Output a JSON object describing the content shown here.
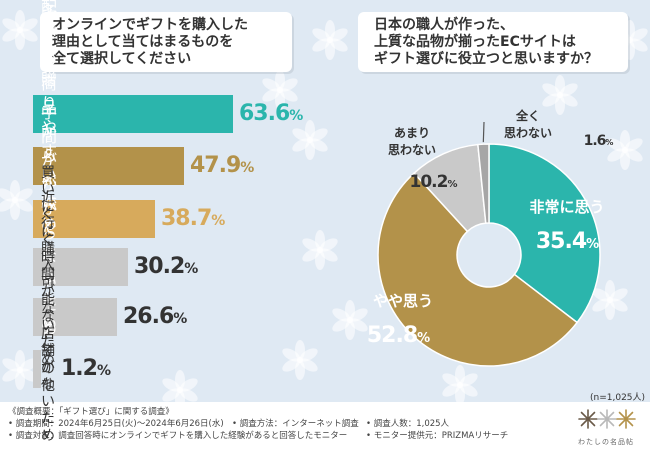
{
  "left_title": {
    "lines": [
      "オンラインでギフトを購入した",
      "理由として当てはまるものを",
      "全て選択してください"
    ]
  },
  "right_title": {
    "lines": [
      "日本の職人が作った、",
      "上質な品物が揃ったECサイトは",
      "ギフト選びに役立つと思いますか？"
    ]
  },
  "colors": {
    "teal": "#2bb5ac",
    "gold": "#b3924a",
    "tan": "#d7aa5c",
    "gray": "#c9c9c9",
    "darkgray": "#a6a6a6",
    "background": "#dfe9f3"
  },
  "chart_data": [
    {
      "type": "bar",
      "orientation": "horizontal",
      "categories": [
        [
          "配送で贈りやすいため"
        ],
        [
          "多くの商品から",
          "比較できるため"
        ],
        [
          "手間がかからないため"
        ],
        [
          "買いに行く",
          "時間がないため"
        ],
        [
          "近くに購入可能な",
          "店舗がないため"
        ],
        [
          "その他"
        ]
      ],
      "values": [
        63.6,
        47.9,
        38.7,
        30.2,
        26.6,
        1.2
      ],
      "value_labels": [
        "63.6",
        "47.9",
        "38.7",
        "30.2",
        "26.6",
        "1.2"
      ],
      "unit": "%",
      "bar_colors": [
        "#2bb5ac",
        "#b3924a",
        "#d7aa5c",
        "#c9c9c9",
        "#c9c9c9",
        "#c9c9c9"
      ],
      "value_colors": [
        "#2bb5ac",
        "#b3924a",
        "#d7aa5c",
        "#333333",
        "#333333",
        "#333333"
      ],
      "xlim": [
        0,
        63.6
      ]
    },
    {
      "type": "pie",
      "slices": [
        {
          "label": [
            "非常に思う"
          ],
          "value": 35.4,
          "value_label": "35.4",
          "color": "#2bb5ac"
        },
        {
          "label": [
            "やや思う"
          ],
          "value": 52.8,
          "value_label": "52.8",
          "color": "#b3924a"
        },
        {
          "label": [
            "あまり",
            "思わない"
          ],
          "value": 10.2,
          "value_label": "10.2",
          "color": "#c9c9c9"
        },
        {
          "label": [
            "全く",
            "思わない"
          ],
          "value": 1.6,
          "value_label": "1.6",
          "color": "#a6a6a6"
        }
      ],
      "unit": "%",
      "start": "12 o'clock",
      "direction": "clockwise",
      "donut": true,
      "sample_note": "(n=1,025人)"
    }
  ],
  "footer": {
    "line1": "《調査概要：「ギフト選び」に関する調査》",
    "items": [
      "• 調査期間：2024年6月25日(火)〜2024年6月26日(水)",
      "• 調査方法：インターネット調査",
      "• 調査人数：1,025人",
      "• 調査対象：調査回答時にオンラインでギフトを購入した経験があると回答したモニター",
      "• モニター提供元：PRIZMAリサーチ"
    ],
    "logo_text": "わたしの名品帖",
    "logo_icon": "flower-logo-icon"
  }
}
